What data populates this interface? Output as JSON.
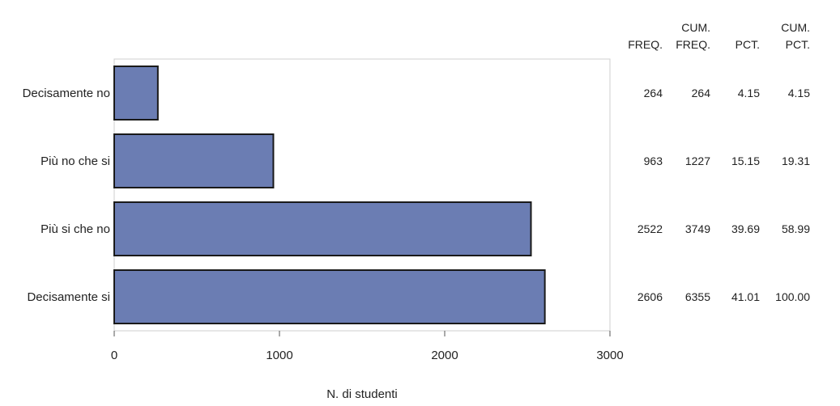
{
  "chart_data": {
    "type": "bar",
    "orientation": "horizontal",
    "categories": [
      "Decisamente no",
      "Più no che si",
      "Più si che no",
      "Decisamente si"
    ],
    "values": [
      264,
      963,
      2522,
      2606
    ],
    "xlabel": "N. di studenti",
    "ylabel": "",
    "xlim": [
      0,
      3000
    ],
    "x_ticks": [
      "0",
      "1000",
      "2000",
      "3000"
    ],
    "bar_color": "#6b7db3",
    "bar_edge_color": "#1a1a1a",
    "grid": false,
    "table": {
      "headers": [
        {
          "line1": "",
          "line2": "FREQ."
        },
        {
          "line1": "CUM.",
          "line2": "FREQ."
        },
        {
          "line1": "",
          "line2": "PCT."
        },
        {
          "line1": "CUM.",
          "line2": "PCT."
        }
      ],
      "rows": [
        [
          "264",
          "264",
          "4.15",
          "4.15"
        ],
        [
          "963",
          "1227",
          "15.15",
          "19.31"
        ],
        [
          "2522",
          "3749",
          "39.69",
          "58.99"
        ],
        [
          "2606",
          "6355",
          "41.01",
          "100.00"
        ]
      ]
    }
  }
}
